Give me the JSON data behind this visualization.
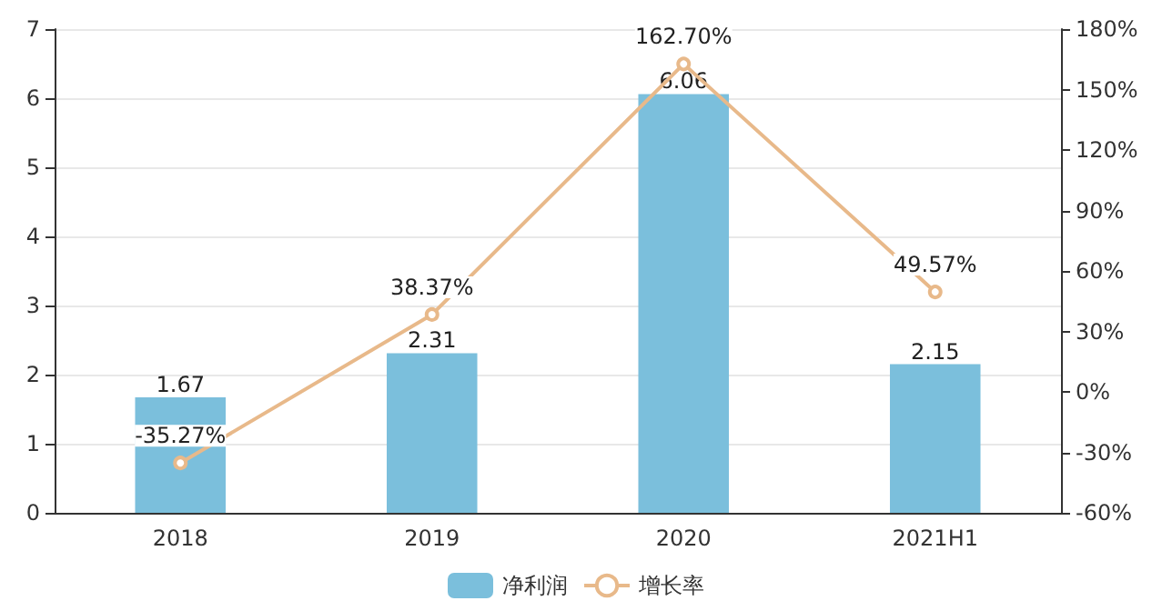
{
  "chart_data": {
    "type": "bar",
    "categories": [
      "2018",
      "2019",
      "2020",
      "2021H1"
    ],
    "series": [
      {
        "name": "净利润",
        "color": "#7bbfdc",
        "values": [
          1.67,
          2.31,
          6.06,
          2.15
        ],
        "value_labels": [
          "1.67",
          "2.31",
          "6.06",
          "2.15"
        ]
      },
      {
        "name": "增长率",
        "type": "line",
        "axis": "y2",
        "color": "#e8b98a",
        "values": [
          -35.27,
          38.37,
          162.7,
          49.57
        ],
        "value_labels": [
          "-35.27%",
          "38.37%",
          "162.70%",
          "49.57%"
        ],
        "marker": "circle"
      }
    ],
    "ylim": [
      0,
      7
    ],
    "yticks": [
      0,
      1,
      2,
      3,
      4,
      5,
      6,
      7
    ],
    "y2lim": [
      -60,
      180
    ],
    "y2ticks": [
      {
        "value": -60,
        "label": "-60%"
      },
      {
        "value": -30,
        "label": "-30%"
      },
      {
        "value": 0,
        "label": "0%"
      },
      {
        "value": 30,
        "label": "30%"
      },
      {
        "value": 60,
        "label": "60%"
      },
      {
        "value": 90,
        "label": "90%"
      },
      {
        "value": 120,
        "label": "120%"
      },
      {
        "value": 150,
        "label": "150%"
      },
      {
        "value": 180,
        "label": "180%"
      }
    ],
    "grid": "y",
    "legend": "bottom"
  }
}
